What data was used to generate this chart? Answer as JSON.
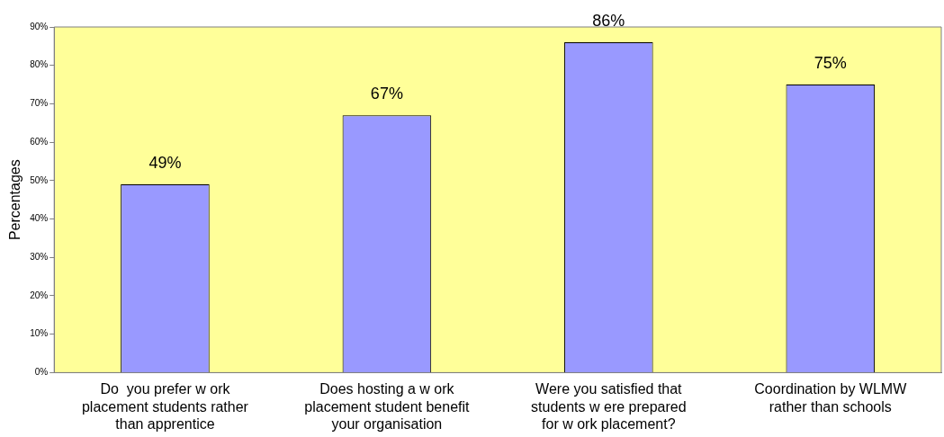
{
  "chart_data": {
    "type": "bar",
    "ylabel": "Percentages",
    "categories": [
      "Do  you prefer w ork placement students rather than apprentice",
      "Does hosting a w ork placement student benefit your organisation",
      "Were you satisfied that students w ere prepared for w ork placement?",
      "Coordination by WLMW rather than schools"
    ],
    "values": [
      49,
      67,
      86,
      75
    ],
    "color": "#9999ff",
    "value_labels": [
      "49%",
      "67%",
      "86%",
      "75%"
    ],
    "ylim": [
      0,
      90
    ],
    "yticks": [
      {
        "value": 0,
        "label": "0%"
      },
      {
        "value": 10,
        "label": "10%"
      },
      {
        "value": 20,
        "label": "20%"
      },
      {
        "value": 30,
        "label": "30%"
      },
      {
        "value": 40,
        "label": "40%"
      },
      {
        "value": 50,
        "label": "50%"
      },
      {
        "value": 60,
        "label": "60%"
      },
      {
        "value": 70,
        "label": "70%"
      },
      {
        "value": 80,
        "label": "80%"
      },
      {
        "value": 90,
        "label": "90%"
      }
    ],
    "grid": false,
    "legend": false
  }
}
